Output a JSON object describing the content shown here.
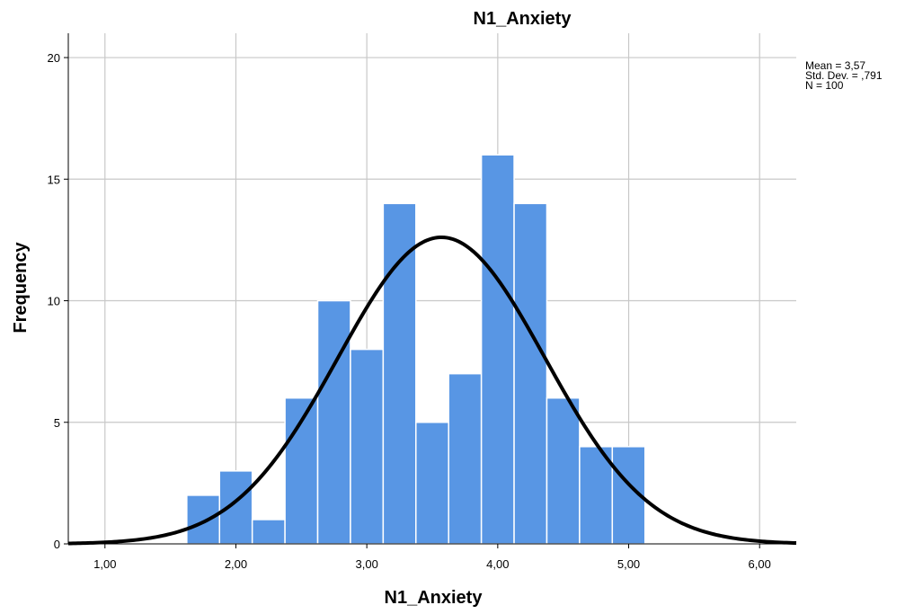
{
  "chart_data": {
    "type": "bar",
    "title": "N1_Anxiety",
    "xlabel": "N1_Anxiety",
    "ylabel": "Frequency",
    "xlim": [
      0.72,
      6.28
    ],
    "ylim": [
      0,
      21
    ],
    "x_ticks": [
      {
        "value": 1,
        "label": "1,00"
      },
      {
        "value": 2,
        "label": "2,00"
      },
      {
        "value": 3,
        "label": "3,00"
      },
      {
        "value": 4,
        "label": "4,00"
      },
      {
        "value": 5,
        "label": "5,00"
      },
      {
        "value": 6,
        "label": "6,00"
      }
    ],
    "y_ticks": [
      {
        "value": 0,
        "label": "0"
      },
      {
        "value": 5,
        "label": "5"
      },
      {
        "value": 10,
        "label": "10"
      },
      {
        "value": 15,
        "label": "15"
      },
      {
        "value": 20,
        "label": "20"
      }
    ],
    "bin_width": 0.25,
    "bins": [
      {
        "start": 1.625,
        "count": 2
      },
      {
        "start": 1.875,
        "count": 3
      },
      {
        "start": 2.125,
        "count": 1
      },
      {
        "start": 2.375,
        "count": 6
      },
      {
        "start": 2.625,
        "count": 10
      },
      {
        "start": 2.875,
        "count": 8
      },
      {
        "start": 3.125,
        "count": 14
      },
      {
        "start": 3.375,
        "count": 5
      },
      {
        "start": 3.625,
        "count": 7
      },
      {
        "start": 3.875,
        "count": 16
      },
      {
        "start": 4.125,
        "count": 14
      },
      {
        "start": 4.375,
        "count": 6
      },
      {
        "start": 4.625,
        "count": 4
      },
      {
        "start": 4.875,
        "count": 4
      }
    ],
    "normal_curve": {
      "mean": 3.57,
      "sd": 0.791,
      "n": 100
    },
    "stats_lines": [
      "Mean = 3,57",
      "Std. Dev. = ,791",
      "N = 100"
    ],
    "bar_color": "#5896e4",
    "grid": true
  }
}
